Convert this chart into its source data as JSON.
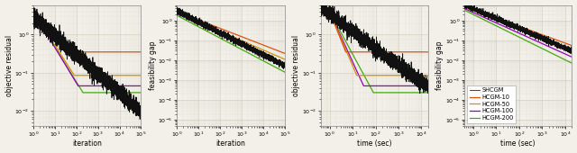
{
  "fig_width": 6.4,
  "fig_height": 1.7,
  "dpi": 100,
  "colors": {
    "SHCGM": "#111111",
    "HCGM-10": "#e05010",
    "HCGM-50": "#d49000",
    "HCGM-100": "#9900bb",
    "HCGM-200": "#44aa10"
  },
  "xlabels": [
    "iteration",
    "iteration",
    "time (sec)",
    "time (sec)"
  ],
  "ylabels": [
    "objective residual",
    "feasibility gap",
    "objective residual",
    "feasibility gap"
  ],
  "xlims_iter": [
    1,
    100000
  ],
  "xlims_time": [
    0.4,
    20000
  ],
  "ylims_obj": [
    0.004,
    6
  ],
  "ylims_feas": [
    5e-06,
    6
  ],
  "background_color": "#f2f0e8"
}
